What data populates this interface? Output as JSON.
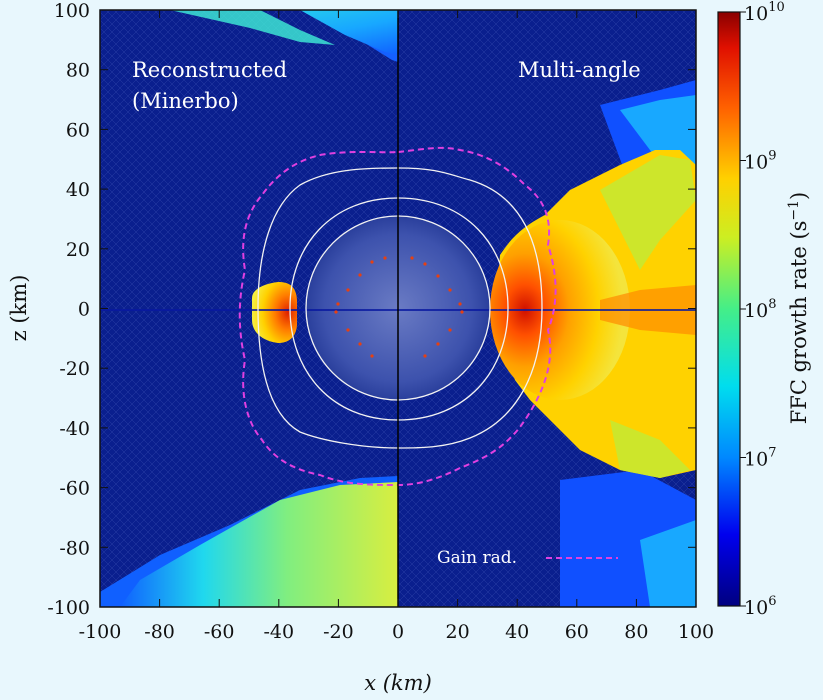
{
  "chart_data": {
    "type": "heatmap",
    "title": "",
    "xlabel": "x (km)",
    "ylabel": "z (km)",
    "xlim": [
      -100,
      100
    ],
    "ylim": [
      -100,
      100
    ],
    "x_ticks": [
      "-100",
      "-80",
      "-60",
      "-40",
      "-20",
      "0",
      "20",
      "40",
      "60",
      "80",
      "100"
    ],
    "y_ticks": [
      "100",
      "80",
      "60",
      "40",
      "20",
      "0",
      "-20",
      "-40",
      "-60",
      "-80",
      "-100"
    ],
    "colorbar": {
      "label": "FFC growth rate (s",
      "label_exponent": "−1",
      "label_close": ")",
      "scale": "log",
      "range": [
        1000000.0,
        10000000000.0
      ],
      "ticks": [
        {
          "base": "10",
          "exp": "10"
        },
        {
          "base": "10",
          "exp": "9"
        },
        {
          "base": "10",
          "exp": "8"
        },
        {
          "base": "10",
          "exp": "7"
        },
        {
          "base": "10",
          "exp": "6"
        }
      ]
    },
    "panels": {
      "left_line1": "Reconstructed",
      "left_line2": "(Minerbo)",
      "right": "Multi-angle"
    },
    "legend": {
      "entries": [
        {
          "label": "Gain rad.",
          "color": "#e040e0",
          "style": "dashed"
        }
      ],
      "placement": "bottom-right"
    },
    "white_contour_radii_km": [
      30,
      40,
      48
    ],
    "gain_radius_km_approx": 50,
    "colors": {
      "background_field": "#0a1f8e",
      "inner_core": "#3a4fa8",
      "gain_radius": "#e040e0",
      "contours": "#ffffff"
    }
  }
}
